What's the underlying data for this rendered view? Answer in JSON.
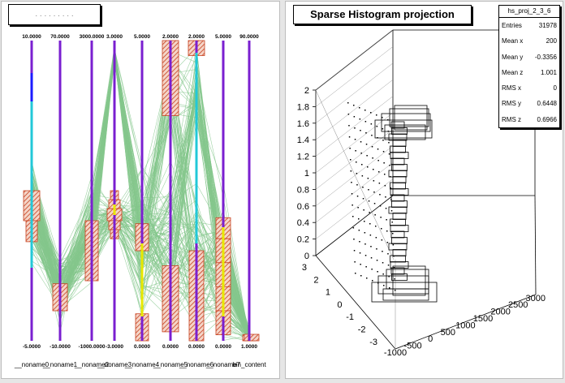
{
  "window": {
    "left_title": ". . . . . . . . .",
    "right_title": "Sparse Histogram projection"
  },
  "parallel_coords": {
    "top_labels": [
      "10.0000",
      "70.0000",
      "3000.0000",
      "3.0000",
      "5.0000",
      "2.0000",
      "2.0000",
      "5.0000",
      "90.0000"
    ],
    "bottom_labels": [
      "-5.0000",
      "-10.0000",
      "-1000.0000",
      "-3.0000",
      "0.0000",
      "0.0000",
      "0.0000",
      "0.0000",
      "1.0000"
    ],
    "axis_names": [
      "__noname0",
      "__noname1",
      "__noname2",
      "__noname3",
      "__noname4",
      "__noname5",
      "__noname6",
      "__noname7",
      "bin_content"
    ],
    "colors": {
      "axis": "#7a1fd0",
      "lines": "#84c78c",
      "hist": "#c8401e",
      "cyan": "#22c8d8",
      "yellow": "#e8e800",
      "blue": "#1a1aff"
    }
  },
  "stats": {
    "name": "hs_proj_2_3_6",
    "rows": [
      {
        "label": "Entries",
        "value": "31978"
      },
      {
        "label": "Mean x",
        "value": "200"
      },
      {
        "label": "Mean y",
        "value": "-0.3356"
      },
      {
        "label": "Mean z",
        "value": "1.001"
      },
      {
        "label": "RMS x",
        "value": "0"
      },
      {
        "label": "RMS y",
        "value": "0.6448"
      },
      {
        "label": "RMS z",
        "value": "0.6966"
      }
    ]
  },
  "axes3d": {
    "z_ticks": [
      "2",
      "1.8",
      "1.6",
      "1.4",
      "1.2",
      "1",
      "0.8",
      "0.6",
      "0.4",
      "0.2",
      "0"
    ],
    "y_ticks": [
      "3",
      "2",
      "1",
      "0",
      "-1",
      "-2",
      "-3"
    ],
    "x_ticks": [
      "-1000",
      "-500",
      "0",
      "500",
      "1000",
      "1500",
      "2000",
      "2500",
      "3000"
    ]
  }
}
